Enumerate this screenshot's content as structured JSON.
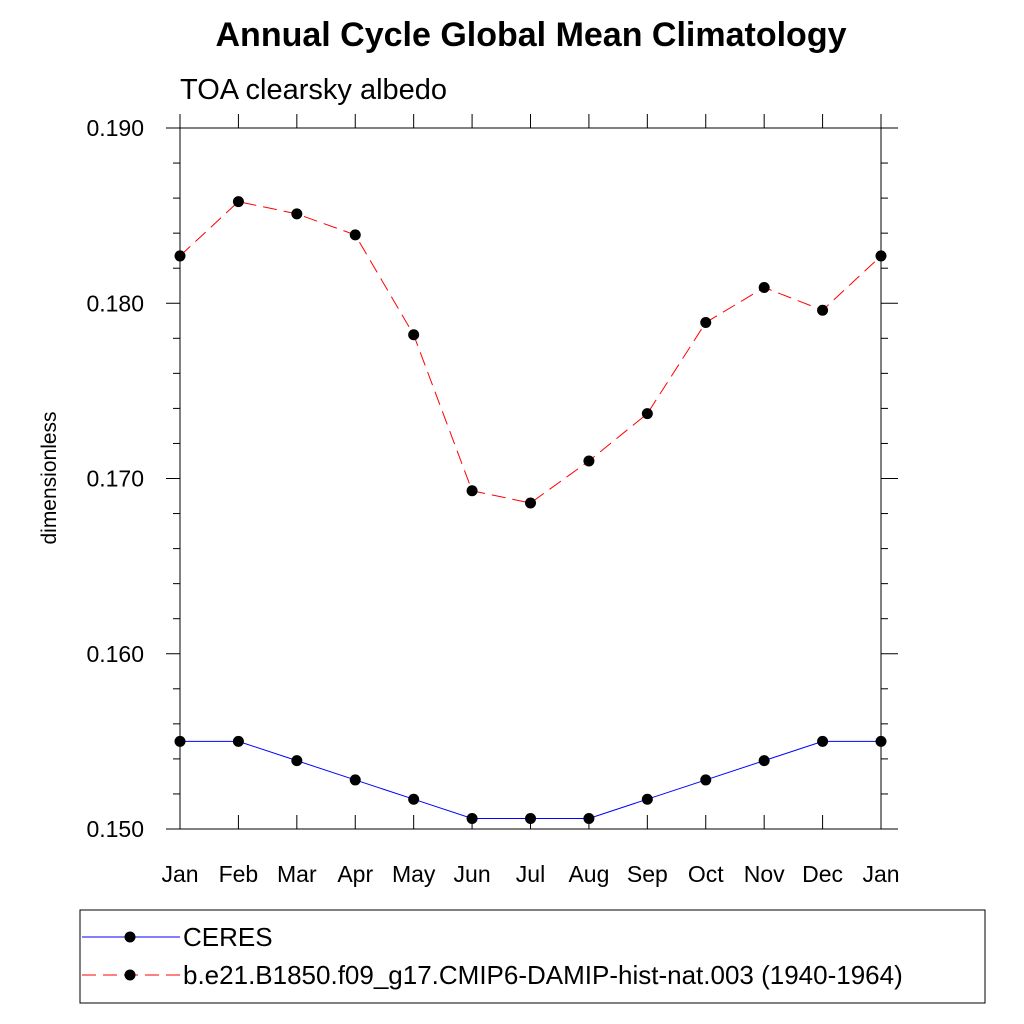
{
  "chart_data": {
    "type": "line",
    "title": "Annual Cycle Global Mean Climatology",
    "subtitle": "TOA clearsky albedo",
    "xlabel": "",
    "ylabel": "dimensionless",
    "categories": [
      "Jan",
      "Feb",
      "Mar",
      "Apr",
      "May",
      "Jun",
      "Jul",
      "Aug",
      "Sep",
      "Oct",
      "Nov",
      "Dec",
      "Jan"
    ],
    "ylim": [
      0.15,
      0.19
    ],
    "yticks": [
      "0.150",
      "0.160",
      "0.170",
      "0.180",
      "0.190"
    ],
    "ytick_values": [
      0.15,
      0.16,
      0.17,
      0.18,
      0.19
    ],
    "grid": false,
    "legend_position": "bottom",
    "series": [
      {
        "name": "CERES",
        "color": "#0000ff",
        "line_style": "solid",
        "marker": "filled-circle",
        "values": [
          0.155,
          0.155,
          0.1539,
          0.1528,
          0.1517,
          0.1506,
          0.1506,
          0.1506,
          0.1517,
          0.1528,
          0.1539,
          0.155,
          0.155
        ]
      },
      {
        "name": "b.e21.B1850.f09_g17.CMIP6-DAMIP-hist-nat.003 (1940-1964)",
        "color": "#ff0000",
        "line_style": "dashed",
        "marker": "filled-circle",
        "values": [
          0.1827,
          0.1858,
          0.1851,
          0.1839,
          0.1782,
          0.1693,
          0.1686,
          0.171,
          0.1737,
          0.1789,
          0.1809,
          0.1796,
          0.1827
        ]
      }
    ]
  }
}
